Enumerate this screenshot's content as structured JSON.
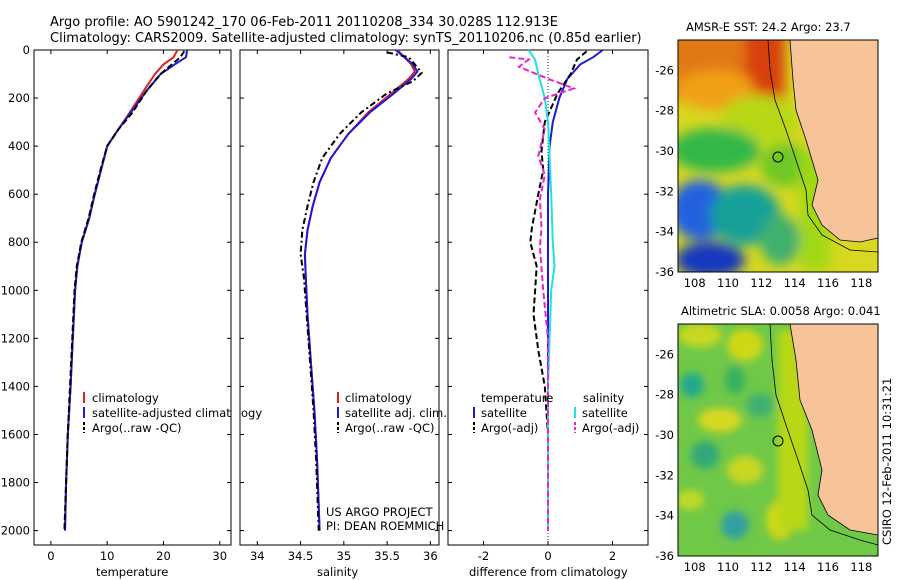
{
  "title_line1": "Argo profile: AO 5901242_170 06-Feb-2011 20110208_334 30.028S 112.913E",
  "title_line2": "Climatology: CARS2009. Satellite-adjusted climatology: synTS_20110206.nc (0.85d earlier)",
  "side_label": "CSIRO 12-Feb-2011 10:31:21",
  "project_line1": "US ARGO PROJECT",
  "project_line2": "PI: DEAN ROEMMICH",
  "colors": {
    "red": "#e02020",
    "blue": "#1a1ad8",
    "cyan": "#22e0e0",
    "magenta": "#f020d0",
    "black": "#000000",
    "land": "#f7c49a"
  },
  "chart_data": [
    {
      "type": "line",
      "id": "temperature",
      "xlabel": "temperature",
      "ylabel": "",
      "xlim": [
        -3,
        32
      ],
      "ylim": [
        0,
        2060
      ],
      "y_reversed": true,
      "xticks": [
        0,
        10,
        20,
        30
      ],
      "yticks": [
        0,
        200,
        400,
        600,
        800,
        1000,
        1200,
        1400,
        1600,
        1800,
        2000
      ],
      "legend": [
        "climatology",
        "satellite-adjusted climatology",
        "Argo(..raw -QC)"
      ],
      "legend_placement": "lower-middle",
      "series": [
        {
          "name": "climatology",
          "color": "red",
          "dash": "",
          "points": [
            [
              22.5,
              0
            ],
            [
              21.8,
              30
            ],
            [
              20.0,
              60
            ],
            [
              18.5,
              100
            ],
            [
              16.5,
              170
            ],
            [
              14,
              260
            ],
            [
              12,
              330
            ],
            [
              10,
              400
            ],
            [
              8.9,
              500
            ],
            [
              7.8,
              600
            ],
            [
              6.8,
              700
            ],
            [
              5.5,
              800
            ],
            [
              4.7,
              900
            ],
            [
              4.3,
              1000
            ],
            [
              3.9,
              1200
            ],
            [
              3.5,
              1400
            ],
            [
              3.0,
              1600
            ],
            [
              2.7,
              1800
            ],
            [
              2.5,
              2000
            ]
          ]
        },
        {
          "name": "satellite-adjusted climatology",
          "color": "blue",
          "dash": "",
          "points": [
            [
              24.2,
              0
            ],
            [
              24.0,
              30
            ],
            [
              22.0,
              60
            ],
            [
              19.5,
              100
            ],
            [
              17,
              170
            ],
            [
              14.2,
              260
            ],
            [
              12,
              330
            ],
            [
              10,
              400
            ],
            [
              8.9,
              500
            ],
            [
              7.8,
              600
            ],
            [
              6.8,
              700
            ],
            [
              5.5,
              800
            ],
            [
              4.7,
              900
            ],
            [
              4.3,
              1000
            ],
            [
              3.9,
              1200
            ],
            [
              3.5,
              1400
            ],
            [
              3.0,
              1600
            ],
            [
              2.7,
              1800
            ],
            [
              2.5,
              2000
            ]
          ]
        },
        {
          "name": "Argo(..raw -QC)",
          "color": "black",
          "dash": "6,3",
          "points": [
            [
              23.7,
              5
            ],
            [
              23.0,
              30
            ],
            [
              21.5,
              60
            ],
            [
              19.5,
              100
            ],
            [
              17,
              170
            ],
            [
              14.5,
              260
            ],
            [
              12,
              330
            ],
            [
              10,
              400
            ],
            [
              8.8,
              500
            ],
            [
              7.7,
              600
            ],
            [
              6.7,
              700
            ],
            [
              5.4,
              800
            ],
            [
              4.6,
              900
            ],
            [
              4.2,
              1000
            ],
            [
              3.8,
              1200
            ],
            [
              3.4,
              1400
            ],
            [
              3.0,
              1600
            ],
            [
              2.7,
              1800
            ],
            [
              2.4,
              2000
            ]
          ]
        }
      ]
    },
    {
      "type": "line",
      "id": "salinity",
      "xlabel": "salinity",
      "xlim": [
        33.8,
        36.1
      ],
      "ylim": [
        0,
        2060
      ],
      "y_reversed": true,
      "xticks": [
        34,
        34.5,
        35,
        35.5,
        36
      ],
      "legend": [
        "climatology",
        "satellite adj. clim.",
        "Argo(..raw -QC)"
      ],
      "legend_placement": "lower-middle",
      "series": [
        {
          "name": "climatology",
          "color": "red",
          "dash": "",
          "points": [
            [
              35.62,
              0
            ],
            [
              35.7,
              30
            ],
            [
              35.78,
              60
            ],
            [
              35.82,
              90
            ],
            [
              35.75,
              120
            ],
            [
              35.55,
              180
            ],
            [
              35.28,
              260
            ],
            [
              35.05,
              350
            ],
            [
              34.85,
              450
            ],
            [
              34.72,
              550
            ],
            [
              34.64,
              650
            ],
            [
              34.58,
              750
            ],
            [
              34.55,
              850
            ],
            [
              34.56,
              950
            ],
            [
              34.58,
              1100
            ],
            [
              34.62,
              1300
            ],
            [
              34.66,
              1500
            ],
            [
              34.69,
              1700
            ],
            [
              34.72,
              2000
            ]
          ]
        },
        {
          "name": "satellite adj. clim.",
          "color": "blue",
          "dash": "",
          "points": [
            [
              35.6,
              0
            ],
            [
              35.7,
              30
            ],
            [
              35.8,
              60
            ],
            [
              35.85,
              90
            ],
            [
              35.78,
              120
            ],
            [
              35.58,
              180
            ],
            [
              35.3,
              260
            ],
            [
              35.05,
              350
            ],
            [
              34.85,
              450
            ],
            [
              34.72,
              550
            ],
            [
              34.64,
              650
            ],
            [
              34.58,
              750
            ],
            [
              34.55,
              850
            ],
            [
              34.56,
              950
            ],
            [
              34.58,
              1100
            ],
            [
              34.62,
              1300
            ],
            [
              34.66,
              1500
            ],
            [
              34.69,
              1700
            ],
            [
              34.72,
              2000
            ]
          ]
        },
        {
          "name": "Argo(..raw -QC)",
          "color": "black",
          "dash": "6,3,2,3",
          "points": [
            [
              35.5,
              10
            ],
            [
              35.75,
              30
            ],
            [
              35.82,
              60
            ],
            [
              35.9,
              95
            ],
            [
              35.8,
              130
            ],
            [
              35.5,
              180
            ],
            [
              35.2,
              260
            ],
            [
              34.95,
              350
            ],
            [
              34.75,
              450
            ],
            [
              34.65,
              550
            ],
            [
              34.58,
              650
            ],
            [
              34.52,
              750
            ],
            [
              34.5,
              850
            ],
            [
              34.54,
              950
            ],
            [
              34.57,
              1100
            ],
            [
              34.61,
              1300
            ],
            [
              34.65,
              1500
            ],
            [
              34.68,
              1700
            ],
            [
              34.71,
              2000
            ]
          ]
        }
      ]
    },
    {
      "type": "line",
      "id": "difference",
      "xlabel": "difference from climatology",
      "xlim": [
        -3.1,
        3.1
      ],
      "ylim": [
        0,
        2060
      ],
      "y_reversed": true,
      "xticks": [
        -2,
        0,
        2
      ],
      "legend_headers": [
        "temperature",
        "salinity"
      ],
      "legend": [
        "satellite",
        "Argo(-adj)",
        "satellite",
        "Argo(-adj)"
      ],
      "legend_placement": "lower-middle",
      "series": [
        {
          "name": "temperature satellite",
          "color": "blue",
          "dash": "",
          "points": [
            [
              1.7,
              0
            ],
            [
              1.4,
              30
            ],
            [
              1.0,
              60
            ],
            [
              0.6,
              120
            ],
            [
              0.35,
              200
            ],
            [
              0.15,
              300
            ],
            [
              0.05,
              400
            ],
            [
              0,
              600
            ],
            [
              0,
              2000
            ]
          ]
        },
        {
          "name": "temperature Argo(-adj)",
          "color": "black",
          "dash": "6,3",
          "points": [
            [
              1.2,
              5
            ],
            [
              0.9,
              40
            ],
            [
              0.7,
              100
            ],
            [
              0.3,
              180
            ],
            [
              -0.1,
              300
            ],
            [
              -0.2,
              420
            ],
            [
              -0.15,
              500
            ],
            [
              -0.3,
              600
            ],
            [
              -0.5,
              740
            ],
            [
              -0.55,
              800
            ],
            [
              -0.35,
              900
            ],
            [
              -0.4,
              1000
            ],
            [
              -0.45,
              1100
            ],
            [
              -0.3,
              1250
            ],
            [
              -0.1,
              1400
            ],
            [
              0,
              1600
            ],
            [
              0,
              2000
            ]
          ]
        },
        {
          "name": "salinity satellite",
          "color": "cyan",
          "dash": "",
          "points": [
            [
              -0.6,
              0
            ],
            [
              -0.4,
              40
            ],
            [
              -0.3,
              100
            ],
            [
              -0.1,
              200
            ],
            [
              0,
              300
            ],
            [
              0.05,
              450
            ],
            [
              0.1,
              600
            ],
            [
              0.15,
              800
            ],
            [
              0.2,
              900
            ],
            [
              0.1,
              1000
            ],
            [
              0.05,
              1200
            ],
            [
              0,
              1400
            ],
            [
              0,
              2000
            ]
          ]
        },
        {
          "name": "salinity Argo(-adj)",
          "color": "magenta",
          "dash": "6,3",
          "points": [
            [
              -1.2,
              30
            ],
            [
              -0.6,
              40
            ],
            [
              -0.9,
              70
            ],
            [
              0,
              120
            ],
            [
              0.8,
              160
            ],
            [
              -0.1,
              200
            ],
            [
              -0.4,
              260
            ],
            [
              -0.1,
              330
            ],
            [
              -0.3,
              440
            ],
            [
              -0.1,
              520
            ],
            [
              -0.25,
              620
            ],
            [
              -0.2,
              740
            ],
            [
              -0.25,
              820
            ],
            [
              -0.15,
              1000
            ],
            [
              0,
              1200
            ],
            [
              0,
              2000
            ]
          ]
        }
      ]
    },
    {
      "type": "heatmap",
      "id": "sst_map",
      "title": "AMSR-E SST: 24.2 Argo: 23.7",
      "xlim": [
        107,
        119
      ],
      "ylim": [
        -36,
        -24.5
      ],
      "xticks": [
        108,
        110,
        112,
        114,
        116,
        118
      ],
      "yticks": [
        -26,
        -28,
        -30,
        -32,
        -34,
        -36
      ],
      "argo_marker": [
        112.9,
        -30.03
      ]
    },
    {
      "type": "heatmap",
      "id": "sla_map",
      "title": "Altimetric SLA: 0.0058 Argo: 0.041",
      "xlim": [
        107,
        119
      ],
      "ylim": [
        -36,
        -24.5
      ],
      "xticks": [
        108,
        110,
        112,
        114,
        116,
        118
      ],
      "yticks": [
        -26,
        -28,
        -30,
        -32,
        -34,
        -36
      ],
      "argo_marker": [
        112.9,
        -30.03
      ]
    }
  ]
}
